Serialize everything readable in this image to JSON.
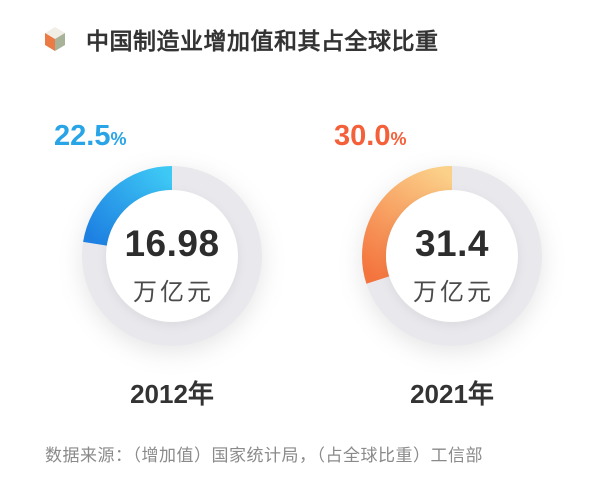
{
  "page": {
    "background": "#ffffff"
  },
  "header": {
    "title": "中国制造业增加值和其占全球比重",
    "icon": "cube-icon",
    "icon_colors": {
      "top": "#f1eee6",
      "left": "#ec7a45",
      "right": "#a7b299"
    }
  },
  "chart_data": {
    "type": "pie",
    "variant": "donut-gauge-pair",
    "title": "中国制造业增加值和其占全球比重",
    "unit": "万亿元",
    "percent_suffix": "%",
    "track_color": "#e9e9ed",
    "legend_position": "none",
    "series": [
      {
        "category": "2012年",
        "value": 16.98,
        "value_label": "16.98",
        "share_percent": 22.5,
        "share_label": "22.5",
        "share_color": "#29a4e6",
        "arc_gradient": [
          "#3ec9f5",
          "#1d80e2"
        ]
      },
      {
        "category": "2021年",
        "value": 31.4,
        "value_label": "31.4",
        "share_percent": 30.0,
        "share_label": "30.0",
        "share_color": "#f4603a",
        "arc_gradient": [
          "#fbd089",
          "#f4743e"
        ]
      }
    ]
  },
  "footer": {
    "source_note": "数据来源：（增加值）国家统计局，（占全球比重）工信部"
  }
}
